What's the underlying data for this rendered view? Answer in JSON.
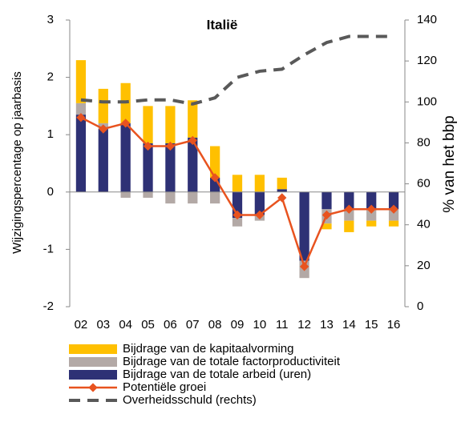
{
  "chart_data": {
    "type": "bar",
    "title": "Italië",
    "y_label": "Wijzigingspercentage op jaarbasis",
    "y2_label": "% van het bbp",
    "categories": [
      "02",
      "03",
      "04",
      "05",
      "06",
      "07",
      "08",
      "09",
      "10",
      "11",
      "12",
      "13",
      "14",
      "15",
      "16"
    ],
    "stacked": true,
    "series": [
      {
        "name": "Bijdrage van de kapitaalvorming",
        "color": "#ffc000",
        "values": [
          0.75,
          0.6,
          0.7,
          0.65,
          0.65,
          0.65,
          0.55,
          0.3,
          0.3,
          0.2,
          0.0,
          -0.1,
          -0.2,
          -0.1,
          -0.1
        ]
      },
      {
        "name": "Bijdrage van de totale factorproductiviteit",
        "color": "#b3a9a6",
        "values": [
          0.2,
          0.1,
          -0.1,
          -0.1,
          -0.2,
          -0.2,
          -0.2,
          -0.15,
          -0.1,
          0.0,
          -0.3,
          -0.25,
          -0.2,
          -0.2,
          -0.2
        ]
      },
      {
        "name": "Bijdrage van de totale arbeid (uren)",
        "color": "#2e3175",
        "values": [
          1.35,
          1.1,
          1.2,
          0.85,
          0.85,
          0.95,
          0.25,
          -0.45,
          -0.4,
          0.05,
          -1.2,
          -0.3,
          -0.3,
          -0.3,
          -0.3
        ]
      },
      {
        "name": "Potentiële groei",
        "color": "#e8531f",
        "type": "line",
        "values": [
          1.3,
          1.1,
          1.2,
          0.8,
          0.8,
          0.9,
          0.25,
          -0.4,
          -0.4,
          -0.1,
          -1.3,
          -0.4,
          -0.3,
          -0.3,
          -0.3
        ]
      },
      {
        "name": "Overheidsschuld (rechts)",
        "color": "#595959",
        "type": "line",
        "dashed": true,
        "axis": "y2",
        "values": [
          101,
          100,
          100,
          101,
          101,
          99,
          102,
          112,
          115,
          116,
          123,
          129,
          132,
          132,
          132
        ]
      }
    ],
    "ylim": [
      -2,
      3
    ],
    "yticks": [
      -2,
      -1,
      0,
      1,
      2,
      3
    ],
    "y2lim": [
      0,
      140
    ],
    "y2ticks": [
      0,
      20,
      40,
      60,
      80,
      100,
      120,
      140
    ]
  }
}
